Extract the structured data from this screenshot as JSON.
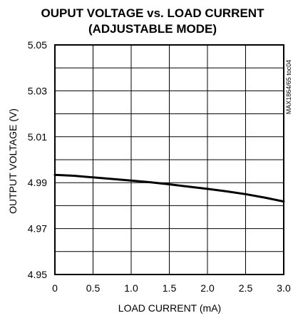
{
  "chart_data": {
    "type": "line",
    "title": "OUPUT VOLTAGE vs. LOAD CURRENT",
    "subtitle": "(ADJUSTABLE MODE)",
    "xlabel": "LOAD CURRENT (mA)",
    "ylabel": "OUTPUT VOLTAGE (V)",
    "xlim": [
      0,
      3.0
    ],
    "ylim": [
      4.95,
      5.05
    ],
    "x_ticks": [
      "0",
      "0.5",
      "1.0",
      "1.5",
      "2.0",
      "2.5",
      "3.0"
    ],
    "y_ticks": [
      "4.95",
      "4.97",
      "4.99",
      "5.01",
      "5.03",
      "5.05"
    ],
    "grid": true,
    "figure_code": "MAX1864/65 toc04",
    "series": [
      {
        "color": "#000000",
        "x": [
          0,
          0.25,
          0.5,
          0.75,
          1.0,
          1.25,
          1.5,
          1.75,
          2.0,
          2.25,
          2.5,
          2.75,
          3.0
        ],
        "y": [
          4.9934,
          4.993,
          4.9923,
          4.9916,
          4.9909,
          4.9902,
          4.9893,
          4.9883,
          4.9873,
          4.9862,
          4.985,
          4.9835,
          4.9818
        ]
      }
    ]
  }
}
